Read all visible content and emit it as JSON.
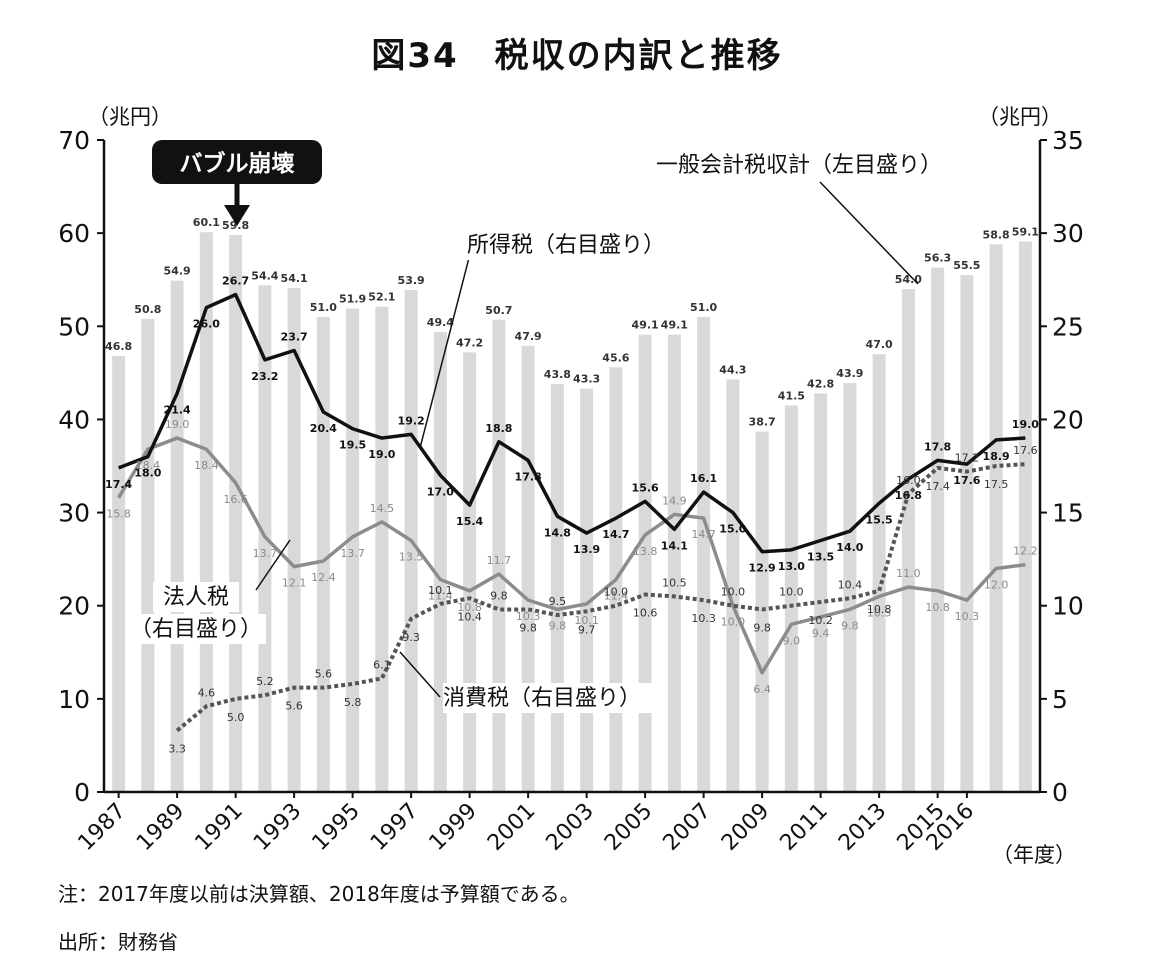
{
  "title": "図34　税収の内訳と推移",
  "note": "注：2017年度以前は決算額、2018年度は予算額である。",
  "source": "出所：財務省",
  "chart_data": {
    "type": "bar+line",
    "title": "図34　税収の内訳と推移",
    "left_axis": {
      "unit_label": "（兆円）",
      "range": [
        0,
        70
      ],
      "ticks": [
        "0",
        "10",
        "20",
        "30",
        "40",
        "50",
        "60",
        "70"
      ]
    },
    "right_axis": {
      "unit_label": "（兆円）",
      "range": [
        0,
        35
      ],
      "ticks": [
        "0",
        "5",
        "10",
        "15",
        "20",
        "25",
        "30",
        "35"
      ]
    },
    "x_unit_label": "（年度）",
    "x_tick_labels": [
      "1987",
      "1989",
      "1991",
      "1993",
      "1995",
      "1997",
      "1999",
      "2001",
      "2003",
      "2005",
      "2007",
      "2009",
      "2011",
      "2013",
      "2015",
      "2016"
    ],
    "years": [
      1987,
      1988,
      1989,
      1990,
      1991,
      1992,
      1993,
      1994,
      1995,
      1996,
      1997,
      1998,
      1999,
      2000,
      2001,
      2002,
      2003,
      2004,
      2005,
      2006,
      2007,
      2008,
      2009,
      2010,
      2011,
      2012,
      2013,
      2014,
      2015,
      2016,
      2017,
      2018
    ],
    "series": [
      {
        "name": "一般会計税収計（左目盛り）",
        "kind": "bar",
        "axis": "left",
        "color": "#d9d9d9",
        "label_color": "#333333",
        "values": [
          46.8,
          50.8,
          54.9,
          60.1,
          59.8,
          54.4,
          54.1,
          51.0,
          51.9,
          52.1,
          53.9,
          49.4,
          47.2,
          50.7,
          47.9,
          43.8,
          43.3,
          45.6,
          49.1,
          49.1,
          51.0,
          44.3,
          38.7,
          41.5,
          42.8,
          43.9,
          47.0,
          54.0,
          56.3,
          55.5,
          58.8,
          59.1
        ],
        "labels": [
          "46.8",
          "50.8",
          "54.9",
          "60.1",
          "59.8",
          "54.4",
          "54.1",
          "51.0",
          "51.9",
          "52.1",
          "53.9",
          "49.4",
          "47.2",
          "50.7",
          "47.9",
          "43.8",
          "43.3",
          "45.6",
          "49.1",
          "49.1",
          "51.0",
          "44.3",
          "38.7",
          "41.5",
          "42.8",
          "43.9",
          "47.0",
          "54.0",
          "56.3",
          "55.5",
          "58.8",
          "59.1"
        ]
      },
      {
        "name": "所得税（右目盛り）",
        "kind": "line",
        "axis": "right",
        "color": "#111111",
        "label_color": "#111111",
        "values": [
          17.4,
          18.0,
          21.4,
          26.0,
          26.7,
          23.2,
          23.7,
          20.4,
          19.5,
          19.0,
          19.2,
          17.0,
          15.4,
          18.8,
          17.8,
          14.8,
          13.9,
          14.7,
          15.6,
          14.1,
          16.1,
          15.0,
          12.9,
          13.0,
          13.5,
          14.0,
          15.5,
          16.8,
          17.8,
          17.6,
          18.9,
          19.0
        ],
        "labels": [
          "17.4",
          "18.0",
          "21.4",
          "26.0",
          "26.7",
          "23.2",
          "23.7",
          "20.4",
          "19.5",
          "19.0",
          "19.2",
          "17.0",
          "15.4",
          "18.8",
          "17.8",
          "14.8",
          "13.9",
          "14.7",
          "15.6",
          "14.1",
          "16.1",
          "15.0",
          "12.9",
          "13.0",
          "13.5",
          "14.0",
          "15.5",
          "16.8",
          "17.8",
          "17.6",
          "18.9",
          "19.0"
        ]
      },
      {
        "name": "法人税（右目盛り）",
        "kind": "line",
        "axis": "right",
        "color": "#8c8c8c",
        "label_color": "#8a8a8a",
        "values": [
          15.8,
          18.4,
          19.0,
          18.4,
          16.6,
          13.7,
          12.1,
          12.4,
          13.7,
          14.5,
          13.5,
          11.4,
          10.8,
          11.7,
          10.3,
          9.8,
          10.1,
          11.4,
          13.8,
          14.9,
          14.7,
          10.0,
          6.4,
          9.0,
          9.4,
          9.8,
          10.5,
          11.0,
          10.8,
          10.3,
          12.0,
          12.2
        ],
        "labels": [
          "15.8",
          "18.4",
          "19.0",
          "18.4",
          "16.6",
          "13.7",
          "12.1",
          "12.4",
          "13.7",
          "14.5",
          "13.5",
          "11.4",
          "10.8",
          "11.7",
          "10.3",
          "9.8",
          "10.1",
          "11.4",
          "13.8",
          "14.9",
          "14.7",
          "10.0",
          "6.4",
          "9.0",
          "9.4",
          "9.8",
          "10.5",
          "11.0",
          "10.8",
          "10.3",
          "12.0",
          "12.2"
        ]
      },
      {
        "name": "消費税（右目盛り）",
        "kind": "dotted-line",
        "axis": "right",
        "color": "#555555",
        "label_color": "#333333",
        "start_index": 2,
        "values": [
          null,
          null,
          3.3,
          4.6,
          5.0,
          5.2,
          5.6,
          5.6,
          5.8,
          6.1,
          9.3,
          10.1,
          10.4,
          9.8,
          9.8,
          9.5,
          9.7,
          10.0,
          10.6,
          10.5,
          10.3,
          10.0,
          9.8,
          10.0,
          10.2,
          10.4,
          10.8,
          16.0,
          17.4,
          17.2,
          17.5,
          17.6
        ],
        "labels": [
          null,
          null,
          "3.3",
          "4.6",
          "5.0",
          "5.2",
          "5.6",
          "5.6",
          "5.8",
          "6.1",
          "9.3",
          "10.1",
          "10.4",
          "9.8",
          "9.8",
          "9.5",
          "9.7",
          "10.0",
          "10.6",
          "10.5",
          "10.3",
          "10.0",
          "9.8",
          "10.0",
          "10.2",
          "10.4",
          "10.8",
          "16.0",
          "17.4",
          "17.2",
          "17.5",
          "17.6"
        ]
      }
    ],
    "annotations": {
      "bubble": "バブル崩壊",
      "total_label": "一般会計税収計（左目盛り）",
      "income_label": "所得税（右目盛り）",
      "corp_label_1": "法人税",
      "corp_label_2": "（右目盛り）",
      "consumption_label": "消費税（右目盛り）"
    }
  }
}
